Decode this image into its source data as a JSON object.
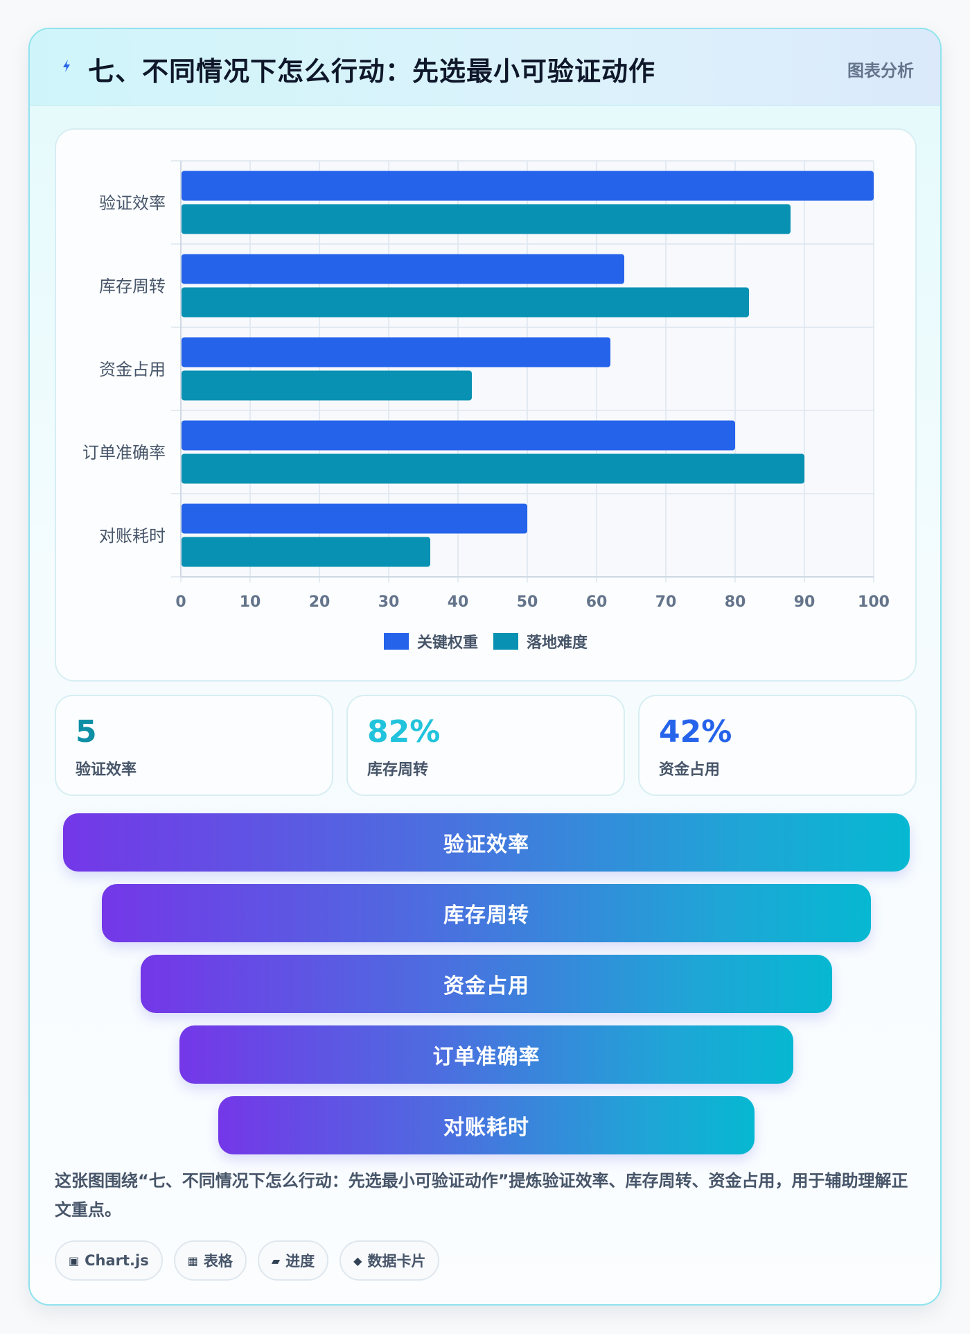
{
  "header": {
    "title": "七、不同情况下怎么行动：先选最小可验证动作",
    "tag": "图表分析",
    "icon": "lightning-icon"
  },
  "chart_data": {
    "type": "bar",
    "orientation": "horizontal",
    "categories": [
      "验证效率",
      "库存周转",
      "资金占用",
      "订单准确率",
      "对账耗时"
    ],
    "series": [
      {
        "name": "关键权重",
        "color": "#2563eb",
        "values": [
          100,
          64,
          62,
          80,
          50
        ]
      },
      {
        "name": "落地难度",
        "color": "#0891b2",
        "values": [
          88,
          82,
          42,
          90,
          36
        ]
      }
    ],
    "xlim": [
      0,
      100
    ],
    "xticks": [
      0,
      10,
      20,
      30,
      40,
      50,
      60,
      70,
      80,
      90,
      100
    ],
    "grid": true,
    "legend_position": "bottom"
  },
  "stats": [
    {
      "value": "5",
      "label": "验证效率",
      "color": "#0e8fa6"
    },
    {
      "value": "82%",
      "label": "库存周转",
      "color": "#22c3dc"
    },
    {
      "value": "42%",
      "label": "资金占用",
      "color": "#2563eb"
    }
  ],
  "funnel": [
    "验证效率",
    "库存周转",
    "资金占用",
    "订单准确率",
    "对账耗时"
  ],
  "caption": "这张图围绕“七、不同情况下怎么行动：先选最小可验证动作”提炼验证效率、库存周转、资金占用，用于辅助理解正文重点。",
  "chips": [
    {
      "icon": "▣",
      "label": "Chart.js"
    },
    {
      "icon": "▦",
      "label": "表格"
    },
    {
      "icon": "▰",
      "label": "进度"
    },
    {
      "icon": "◆",
      "label": "数据卡片"
    }
  ]
}
